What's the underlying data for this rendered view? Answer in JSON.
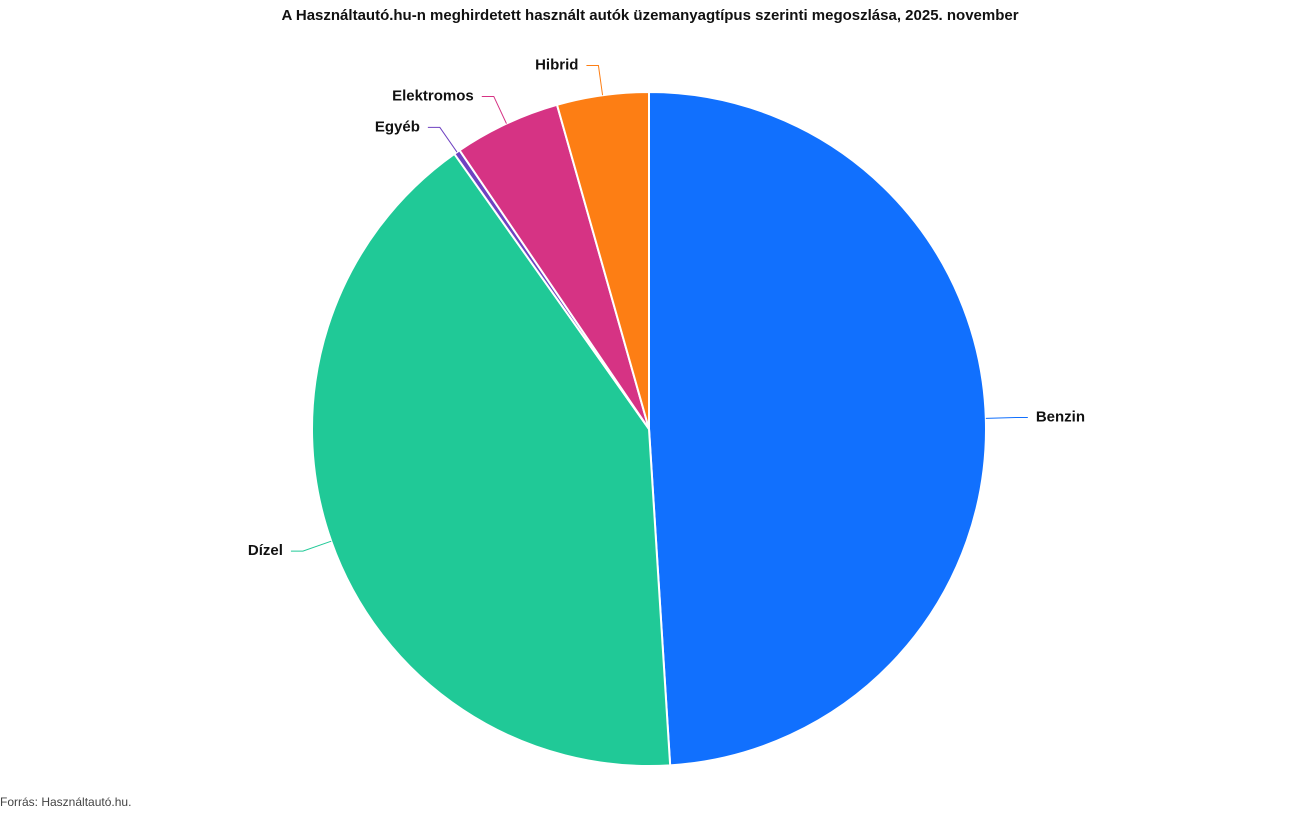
{
  "chart_data": {
    "type": "pie",
    "title": "A Használtautó.hu-n meghirdetett használt autók üzemanyagtípus szerinti megoszlása, 2025. november",
    "source": "Forrás: Használtautó.hu.",
    "categories": [
      "Benzin",
      "Dízel",
      "Egyéb",
      "Elektromos",
      "Hibrid"
    ],
    "values": [
      49,
      41.2,
      0.3,
      5.1,
      4.4
    ],
    "colors": [
      "#1170fe",
      "#20c997",
      "#6f42c1",
      "#d63384",
      "#fd7e14"
    ]
  }
}
